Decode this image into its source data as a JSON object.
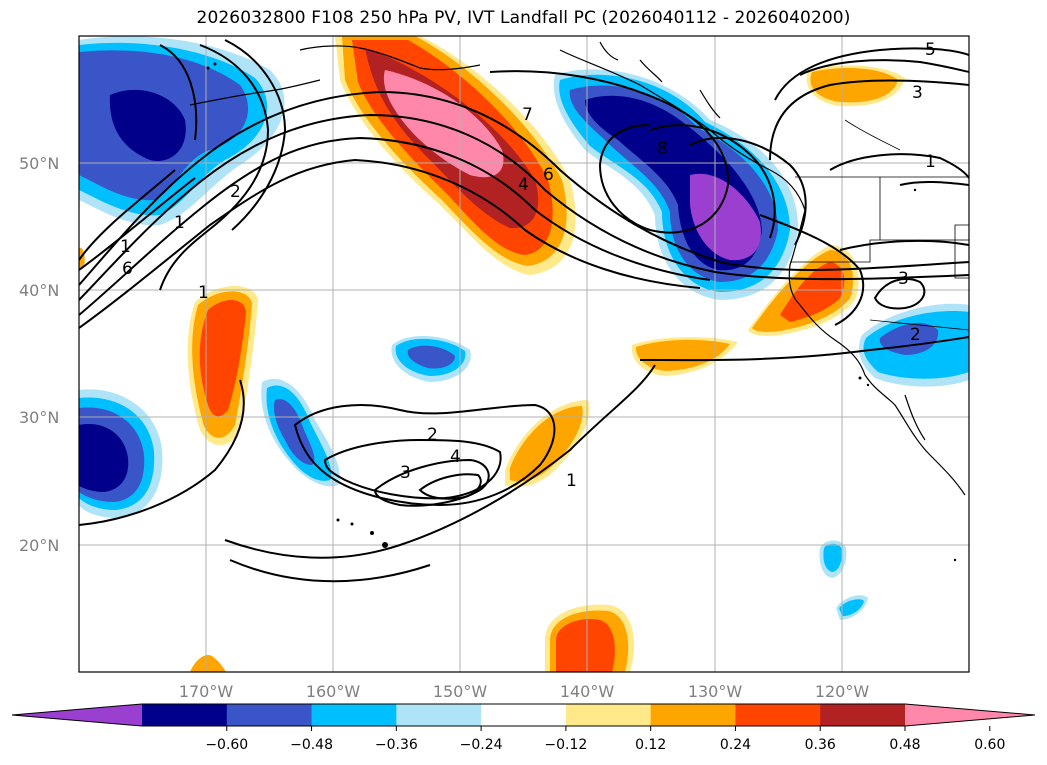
{
  "title": "2026032800 F108 250 hPa PV, IVT Landfall PC (2026040112 - 2026040200)",
  "lat_labels": [
    "50°N",
    "40°N",
    "30°N",
    "20°N"
  ],
  "lon_labels": [
    "170°W",
    "160°W",
    "150°W",
    "140°W",
    "130°W",
    "120°W"
  ],
  "colorbar": {
    "ticks": [
      "−0.60",
      "−0.48",
      "−0.36",
      "−0.24",
      "−0.12",
      "0.12",
      "0.24",
      "0.36",
      "0.48",
      "0.60"
    ],
    "colors": [
      "#9a3fd0",
      "#00008b",
      "#3a55c8",
      "#00bfff",
      "#afe3f8",
      "#ffffff",
      "#ffe98a",
      "#ffa500",
      "#ff4500",
      "#b22222",
      "#ff88aa"
    ]
  },
  "contour_labels": [
    "5",
    "3",
    "1",
    "8",
    "7",
    "6",
    "4",
    "2",
    "1",
    "6",
    "1",
    "3",
    "2",
    "4",
    "3",
    "2",
    "1",
    "1"
  ]
}
